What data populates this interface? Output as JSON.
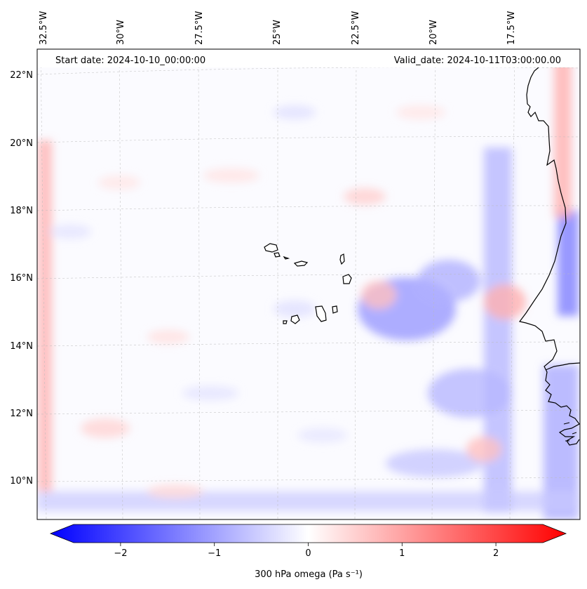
{
  "map": {
    "header": {
      "start_date": "Start date: 2024-10-10_00:00:00",
      "valid_date": "Valid_date: 2024-10-11T03:00:00.00"
    },
    "lon_ticks": [
      "32.5°W",
      "30°W",
      "27.5°W",
      "25°W",
      "22.5°W",
      "20°W",
      "17.5°W"
    ],
    "lat_ticks": [
      "22°N",
      "20°N",
      "18°N",
      "16°N",
      "14°N",
      "12°N",
      "10°N"
    ],
    "colorbar": {
      "label": "300 hPa omega (Pa s⁻¹)",
      "ticks": [
        "−2",
        "−1",
        "0",
        "1",
        "2"
      ],
      "tick_values": [
        -2,
        -1,
        0,
        1,
        2
      ],
      "range": [
        -2.5,
        2.5
      ],
      "colormap": "bwr",
      "extend": "both"
    },
    "colors": {
      "negative": "#0000ff",
      "zero": "#ffffff",
      "positive": "#ff0000",
      "coastline": "#000000"
    }
  }
}
